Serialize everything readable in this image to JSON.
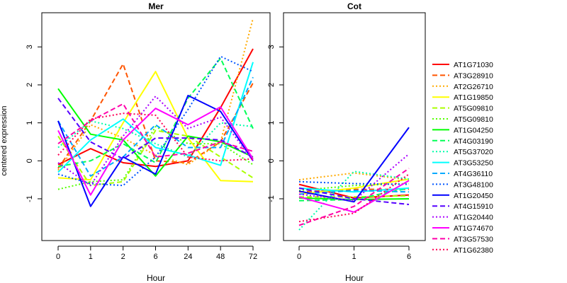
{
  "chart_data": {
    "type": "line",
    "ylabel": "centered expression",
    "yticks": [
      -1,
      0,
      1,
      2,
      3
    ],
    "ylim": [
      -2.1,
      3.9
    ],
    "legend_position": "right",
    "series": [
      {
        "name": "AT1G71030",
        "color": "#ff0000",
        "dash": "solid"
      },
      {
        "name": "AT3G28910",
        "color": "#ff5500",
        "dash": "dashed"
      },
      {
        "name": "AT2G26710",
        "color": "#ffaa00",
        "dash": "dotted"
      },
      {
        "name": "AT1G19850",
        "color": "#ffff00",
        "dash": "solid"
      },
      {
        "name": "AT5G09810",
        "color": "#aaff00",
        "dash": "dashed"
      },
      {
        "name": "AT5G09810",
        "color": "#55ff00",
        "dash": "dotted"
      },
      {
        "name": "AT1G04250",
        "color": "#00ff00",
        "dash": "solid"
      },
      {
        "name": "AT4G03190",
        "color": "#00ff55",
        "dash": "dashed"
      },
      {
        "name": "AT5G37020",
        "color": "#00ffaa",
        "dash": "dotted"
      },
      {
        "name": "AT3G53250",
        "color": "#00ffff",
        "dash": "solid"
      },
      {
        "name": "AT4G36110",
        "color": "#00aaff",
        "dash": "dashed"
      },
      {
        "name": "AT3G48100",
        "color": "#0055ff",
        "dash": "dotted"
      },
      {
        "name": "AT1G20450",
        "color": "#0000ff",
        "dash": "solid"
      },
      {
        "name": "AT4G15910",
        "color": "#5500ff",
        "dash": "dashed"
      },
      {
        "name": "AT1G20440",
        "color": "#aa00ff",
        "dash": "dotted"
      },
      {
        "name": "AT1G74670",
        "color": "#ff00ff",
        "dash": "solid"
      },
      {
        "name": "AT3G57530",
        "color": "#ff00aa",
        "dash": "dashed"
      },
      {
        "name": "AT1G62380",
        "color": "#ff0055",
        "dash": "dotted"
      }
    ],
    "panels": [
      {
        "title": "Mer",
        "xlabel": "Hour",
        "categories": [
          "0",
          "1",
          "2",
          "6",
          "24",
          "48",
          "72"
        ],
        "values": [
          [
            -0.1,
            0.32,
            -0.05,
            -0.15,
            0.0,
            1.4,
            2.95
          ],
          [
            -0.2,
            1.05,
            2.55,
            0.0,
            -0.05,
            0.5,
            2.05
          ],
          [
            -0.25,
            0.95,
            0.6,
            0.15,
            -0.1,
            0.5,
            3.75
          ],
          [
            -0.45,
            -0.5,
            1.0,
            2.35,
            0.6,
            -0.52,
            -0.55
          ],
          [
            0.65,
            -0.65,
            -0.55,
            0.8,
            0.65,
            0.1,
            -0.45
          ],
          [
            -0.75,
            -0.55,
            -0.5,
            0.9,
            0.45,
            0.45,
            -0.1
          ],
          [
            1.9,
            0.7,
            0.55,
            -0.4,
            0.65,
            0.5,
            0.1
          ],
          [
            -0.15,
            0.0,
            0.45,
            -0.05,
            1.65,
            2.7,
            0.85
          ],
          [
            0.35,
            1.05,
            0.85,
            0.45,
            0.1,
            1.0,
            0.9
          ],
          [
            -0.3,
            0.55,
            1.1,
            0.35,
            0.15,
            -0.12,
            2.6
          ],
          [
            1.05,
            -0.4,
            0.1,
            0.95,
            0.35,
            0.35,
            2.2
          ],
          [
            -0.35,
            -0.6,
            -0.65,
            0.1,
            1.35,
            2.75,
            2.35
          ],
          [
            1.05,
            -1.2,
            0.1,
            -0.35,
            1.72,
            1.3,
            0.0
          ],
          [
            1.65,
            0.5,
            0.05,
            0.6,
            0.6,
            0.55,
            0.1
          ],
          [
            -0.05,
            -0.65,
            0.65,
            1.7,
            0.85,
            1.15,
            0.0
          ],
          [
            0.8,
            -0.9,
            0.55,
            1.38,
            0.95,
            1.42,
            0.05
          ],
          [
            0.45,
            1.05,
            1.5,
            0.1,
            0.2,
            0.5,
            0.25
          ],
          [
            0.15,
            1.1,
            1.25,
            1.2,
            0.1,
            0.0,
            0.05
          ]
        ]
      },
      {
        "title": "Cot",
        "xlabel": "Hour",
        "categories": [
          "0",
          "1",
          "6"
        ],
        "values": [
          [
            -0.62,
            -0.98,
            -0.9
          ],
          [
            -0.82,
            -0.75,
            -0.75
          ],
          [
            -0.5,
            -0.32,
            -0.5
          ],
          [
            -0.88,
            -0.72,
            -0.48
          ],
          [
            -0.95,
            -0.95,
            -0.92
          ],
          [
            -0.78,
            -0.65,
            -0.6
          ],
          [
            -0.98,
            -1.02,
            -1.0
          ],
          [
            -1.05,
            -1.02,
            -0.72
          ],
          [
            -1.82,
            -0.28,
            -0.48
          ],
          [
            -0.72,
            -0.82,
            -0.72
          ],
          [
            -0.88,
            -0.78,
            -0.82
          ],
          [
            -0.55,
            -0.6,
            -0.62
          ],
          [
            -0.8,
            -1.08,
            0.88
          ],
          [
            -0.72,
            -1.0,
            -1.15
          ],
          [
            -0.88,
            -1.05,
            0.18
          ],
          [
            -0.95,
            -1.35,
            -0.52
          ],
          [
            -1.7,
            -1.2,
            -0.2
          ],
          [
            -1.6,
            -1.38,
            -0.35
          ]
        ]
      }
    ]
  }
}
